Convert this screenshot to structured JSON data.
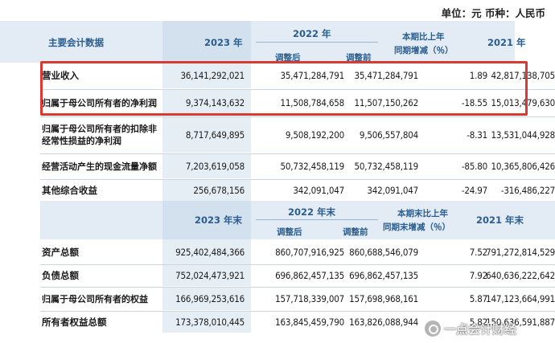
{
  "unit_line": "单位：元  币种：人民币",
  "section1": {
    "header": {
      "label": "主要会计数据",
      "year_current": "2023 年",
      "year_prev": "2022 年",
      "adjusted": "调整后",
      "before_adjustment": "调整前",
      "change_line1": "本期比上年",
      "change_line2": "同期增减（％）",
      "year_prev2": "2021 年"
    },
    "rows": [
      {
        "label": "营业收入",
        "v2023": "36,141,292,021",
        "v2022_adj": "35,471,284,791",
        "v2022_pre": "35,471,284,791",
        "change": "1.89",
        "v2021": "42,817,138,705"
      },
      {
        "label": "归属于母公司所有者的净利润",
        "v2023": "9,374,143,632",
        "v2022_adj": "11,508,784,658",
        "v2022_pre": "11,507,150,262",
        "change": "-18.55",
        "v2021": "15,013,479,630"
      },
      {
        "label": "归属于母公司所有者的扣除非经常性损益的净利润",
        "v2023": "8,717,649,895",
        "v2022_adj": "9,508,192,200",
        "v2022_pre": "9,506,557,804",
        "change": "-8.31",
        "v2021": "13,531,044,928"
      },
      {
        "label": "经营活动产生的现金流量净额",
        "v2023": "7,203,619,058",
        "v2022_adj": "50,732,458,119",
        "v2022_pre": "50,732,458,119",
        "change": "-85.80",
        "v2021": "10,365,806,426"
      },
      {
        "label": "其他综合收益",
        "v2023": "256,678,156",
        "v2022_adj": "342,091,047",
        "v2022_pre": "342,091,047",
        "change": "-24.97",
        "v2021": "-316,486,227"
      }
    ]
  },
  "section2": {
    "header": {
      "year_current": "2023 年末",
      "year_prev": "2022 年末",
      "adjusted": "调整后",
      "before_adjustment": "调整前",
      "change_line1": "本期末比上年",
      "change_line2": "同期末增减（％）",
      "year_prev2": "2021 年末"
    },
    "rows": [
      {
        "label": "资产总额",
        "v2023": "925,402,484,366",
        "v2022_adj": "860,707,916,925",
        "v2022_pre": "860,688,546,079",
        "change": "7.52",
        "v2021": "791,272,814,529"
      },
      {
        "label": "负债总额",
        "v2023": "752,024,473,921",
        "v2022_adj": "696,862,457,135",
        "v2022_pre": "696,862,457,135",
        "change": "7.92",
        "v2021": "640,636,222,642"
      },
      {
        "label": "归属于母公司所有者的权益",
        "v2023": "166,969,253,616",
        "v2022_adj": "157,718,339,007",
        "v2022_pre": "157,698,968,161",
        "change": "5.87",
        "v2021": "147,123,664,991"
      },
      {
        "label": "所有者权益总额",
        "v2023": "173,378,010,445",
        "v2022_adj": "163,845,459,790",
        "v2022_pre": "163,826,088,944",
        "change": "5.82",
        "v2021": "150,636,591,887"
      }
    ]
  },
  "watermark": "一点会计财经",
  "colors": {
    "highlight": "#d93a32",
    "header_text": "#2a5d8f",
    "header_bg": "#e3ecf4",
    "current_year_bg": "#e6eef5"
  }
}
